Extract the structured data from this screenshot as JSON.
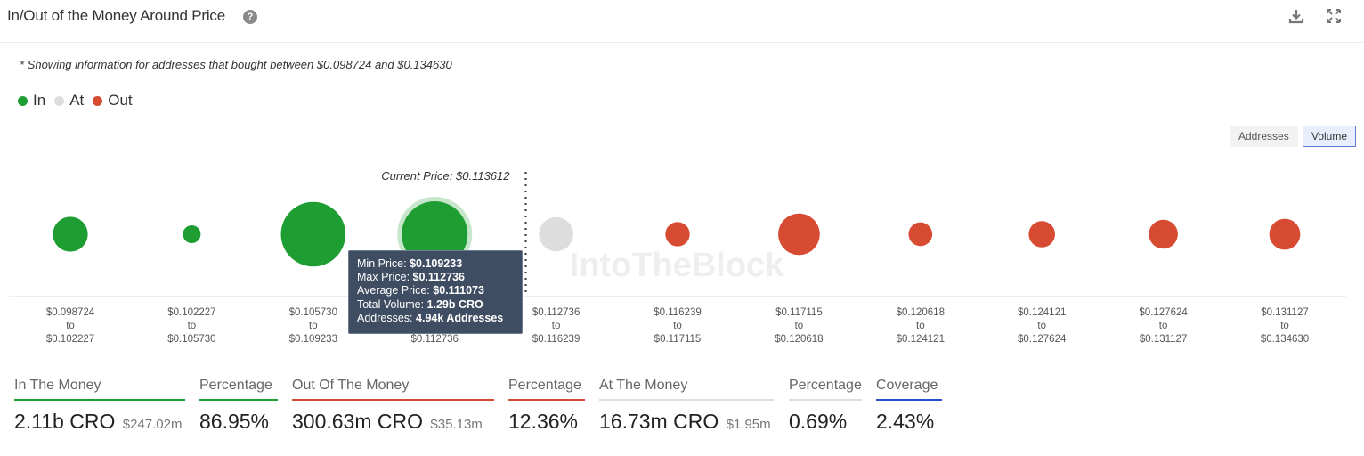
{
  "header": {
    "title": "In/Out of the Money Around Price",
    "help_glyph": "?"
  },
  "note": "* Showing information for addresses that bought between $0.098724 and $0.134630",
  "legend": [
    {
      "label": "In",
      "color": "#1e9e32"
    },
    {
      "label": "At",
      "color": "#dddddd"
    },
    {
      "label": "Out",
      "color": "#d74b33"
    }
  ],
  "toggles": {
    "addresses": "Addresses",
    "volume": "Volume",
    "active": "Volume"
  },
  "chart_data": {
    "type": "scatter",
    "title": "In/Out of the Money Around Price",
    "metric": "Volume",
    "current_price_label": "Current Price: $0.113612",
    "current_price": 0.113612,
    "watermark": "IntoTheBlock",
    "colors": {
      "in": "#1e9e32",
      "at": "#dddddd",
      "out": "#d74b33"
    },
    "bins": [
      {
        "from": "$0.098724",
        "to": "$0.102227",
        "status": "in",
        "relative_size": 0.53
      },
      {
        "from": "$0.102227",
        "to": "$0.105730",
        "status": "in",
        "relative_size": 0.27
      },
      {
        "from": "$0.105730",
        "to": "$0.109233",
        "status": "in",
        "relative_size": 0.98
      },
      {
        "from": "$0.109233",
        "to": "$0.112736",
        "status": "in",
        "relative_size": 1.0,
        "highlighted": true
      },
      {
        "from": "$0.112736",
        "to": "$0.116239",
        "status": "at",
        "relative_size": 0.52
      },
      {
        "from": "$0.116239",
        "to": "$0.117115",
        "status": "out",
        "relative_size": 0.37
      },
      {
        "from": "$0.117115",
        "to": "$0.120618",
        "status": "out",
        "relative_size": 0.63
      },
      {
        "from": "$0.120618",
        "to": "$0.124121",
        "status": "out",
        "relative_size": 0.36
      },
      {
        "from": "$0.124121",
        "to": "$0.127624",
        "status": "out",
        "relative_size": 0.4
      },
      {
        "from": "$0.127624",
        "to": "$0.131127",
        "status": "out",
        "relative_size": 0.44
      },
      {
        "from": "$0.131127",
        "to": "$0.134630",
        "status": "out",
        "relative_size": 0.47
      }
    ],
    "tick_connector": "to",
    "tooltip": {
      "min_price_label": "Min Price:",
      "min_price": "$0.109233",
      "max_price_label": "Max Price:",
      "max_price": "$0.112736",
      "avg_price_label": "Average Price:",
      "avg_price": "$0.111073",
      "volume_label": "Total Volume:",
      "volume": "1.29b CRO",
      "addresses_label": "Addresses:",
      "addresses": "4.94k Addresses"
    }
  },
  "stats": {
    "in_money": {
      "label": "In The Money",
      "value": "2.11b CRO",
      "sub": "$247.02m",
      "color": "#1e9e32"
    },
    "in_pct": {
      "label": "Percentage",
      "value": "86.95%",
      "color": "#1e9e32"
    },
    "out_money": {
      "label": "Out Of The Money",
      "value": "300.63m CRO",
      "sub": "$35.13m",
      "color": "#d74b33"
    },
    "out_pct": {
      "label": "Percentage",
      "value": "12.36%",
      "color": "#d74b33"
    },
    "at_money": {
      "label": "At The Money",
      "value": "16.73m CRO",
      "sub": "$1.95m",
      "color": "#dddddd"
    },
    "at_pct": {
      "label": "Percentage",
      "value": "0.69%",
      "color": "#dddddd"
    },
    "coverage": {
      "label": "Coverage",
      "value": "2.43%",
      "color": "#2a4fd1"
    }
  }
}
